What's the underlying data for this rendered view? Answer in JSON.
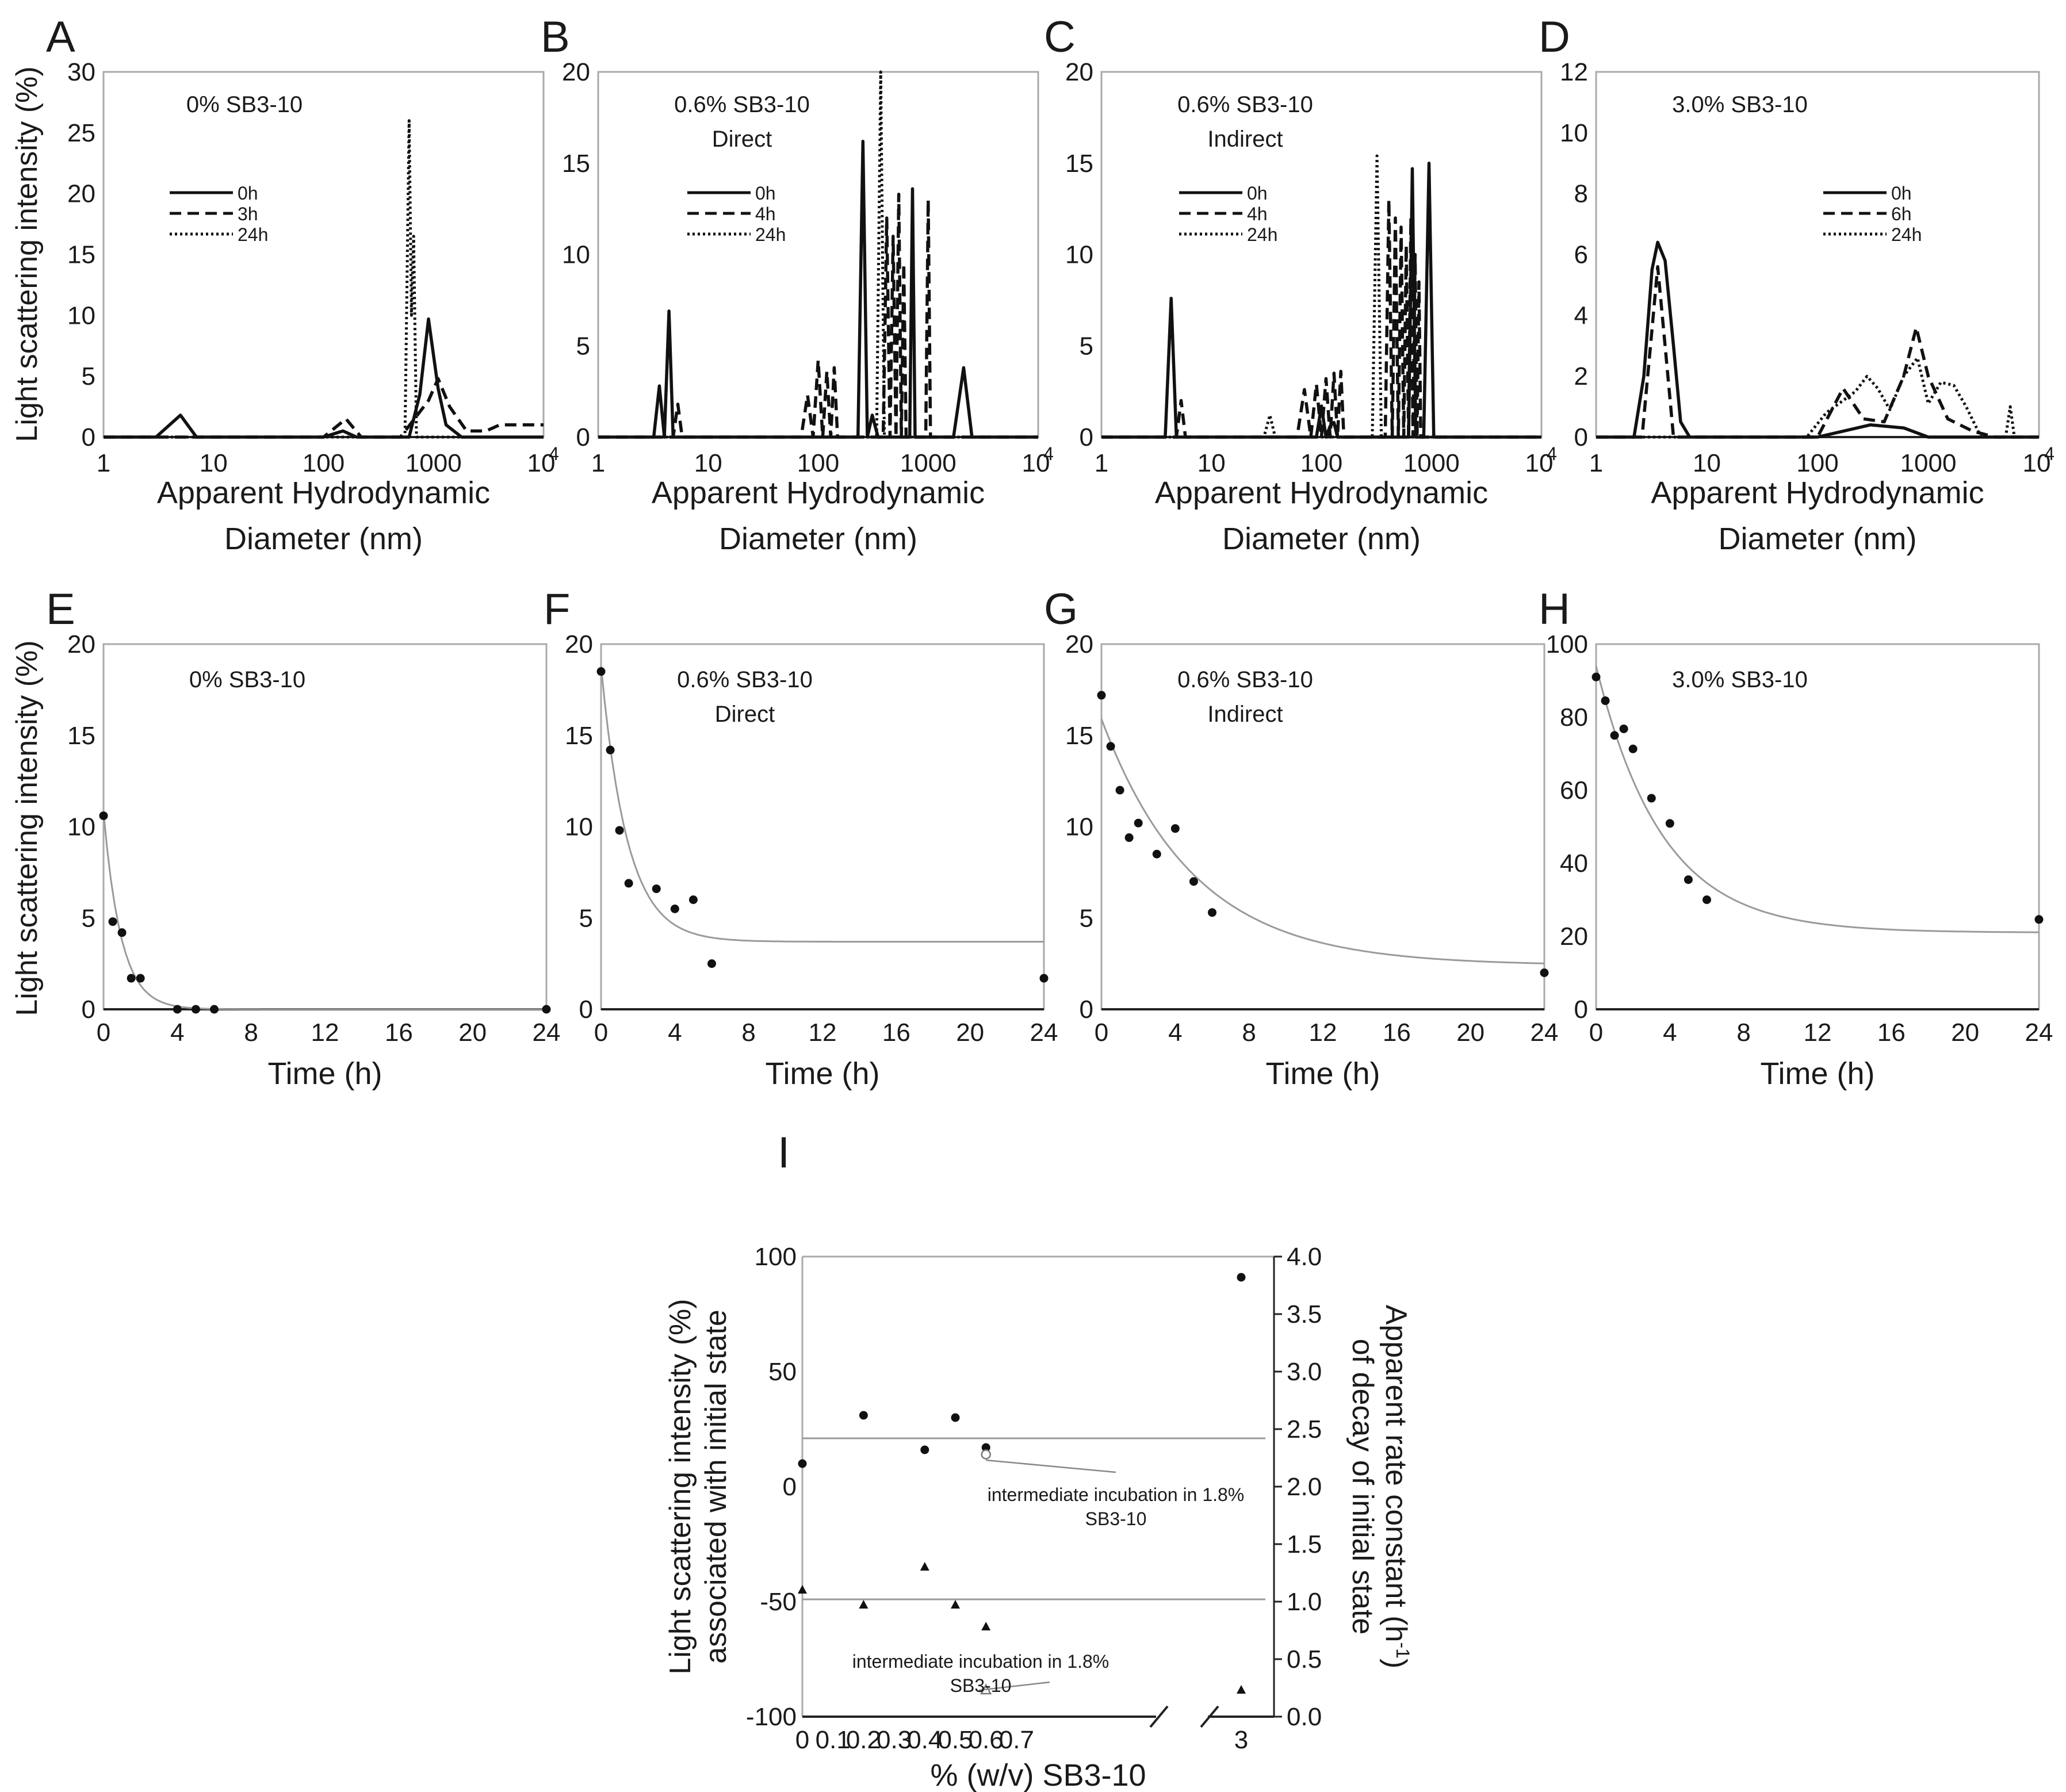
{
  "figure": {
    "shared_labels": {
      "dist_xlabel_line1": "Apparent Hydrodynamic",
      "dist_xlabel_line2": "Diameter (nm)",
      "dist_ylabel": "Light scattering intensity (%)",
      "time_xlabel": "Time (h)",
      "time_ylabel": "Light scattering intensity (%)"
    }
  },
  "chart_data": [
    {
      "id": "A",
      "panel_label": "A",
      "type": "line",
      "xscale": "log",
      "xlim": [
        1,
        10000
      ],
      "ylim": [
        0,
        30
      ],
      "xtick_labels": [
        "1",
        "10",
        "100",
        "1000",
        "10",
        "4"
      ],
      "ytick_labels": [
        "0",
        "5",
        "10",
        "15",
        "20",
        "25",
        "30"
      ],
      "annotation": [
        "0% SB3-10"
      ],
      "series": [
        {
          "name": "0h",
          "style": "solid",
          "x": [
            1,
            3,
            5,
            7,
            100,
            150,
            200,
            600,
            750,
            900,
            1100,
            1300,
            1800,
            10000
          ],
          "y": [
            0,
            0,
            1.8,
            0,
            0,
            0.5,
            0,
            0,
            3.5,
            9.7,
            4,
            1,
            0,
            0
          ]
        },
        {
          "name": "3h",
          "style": "dashed",
          "x": [
            1,
            100,
            160,
            220,
            500,
            900,
            1100,
            1400,
            2000,
            3000,
            4000,
            5000,
            10000
          ],
          "y": [
            0,
            0,
            1.5,
            0,
            0,
            3,
            4.8,
            2.5,
            0.5,
            0.5,
            1,
            1,
            1
          ]
        },
        {
          "name": "24h",
          "style": "dotted",
          "x": [
            1,
            550,
            600,
            630,
            660,
            700,
            750,
            10000
          ],
          "y": [
            0,
            0,
            26,
            10,
            16.5,
            0,
            0,
            0
          ]
        }
      ]
    },
    {
      "id": "B",
      "panel_label": "B",
      "type": "line",
      "xscale": "log",
      "xlim": [
        1,
        10000
      ],
      "ylim": [
        0,
        20
      ],
      "xtick_labels": [
        "1",
        "10",
        "100",
        "1000",
        "10",
        "4"
      ],
      "ytick_labels": [
        "0",
        "5",
        "10",
        "15",
        "20"
      ],
      "annotation": [
        "0.6% SB3-10",
        "Direct"
      ],
      "series": [
        {
          "name": "0h",
          "style": "solid",
          "x": [
            1,
            3.2,
            3.6,
            4.0,
            4.4,
            4.8,
            230,
            255,
            280,
            310,
            350,
            680,
            720,
            760,
            1700,
            2100,
            2500,
            10000
          ],
          "y": [
            0,
            0,
            2.8,
            0,
            6.9,
            0,
            0,
            16.2,
            0,
            1.2,
            0,
            0,
            13.6,
            0,
            0,
            3.8,
            0,
            0
          ]
        },
        {
          "name": "4h",
          "style": "dashed",
          "x": [
            1,
            4.8,
            5.3,
            5.8,
            70,
            80,
            90,
            100,
            110,
            120,
            130,
            140,
            150,
            390,
            420,
            450,
            480,
            510,
            540,
            570,
            600,
            630,
            950,
            1000,
            1050,
            10000
          ],
          "y": [
            0,
            0,
            1.8,
            0,
            0,
            2.3,
            0,
            4.2,
            0,
            3.6,
            0,
            3.8,
            0,
            0,
            12,
            0,
            11,
            0,
            13.3,
            0,
            9.5,
            0,
            0,
            13,
            0,
            0
          ]
        },
        {
          "name": "24h",
          "style": "dotted",
          "x": [
            1,
            340,
            370,
            400,
            10000
          ],
          "y": [
            0,
            0,
            20,
            0,
            0
          ]
        }
      ]
    },
    {
      "id": "C",
      "panel_label": "C",
      "type": "line",
      "xscale": "log",
      "xlim": [
        1,
        10000
      ],
      "ylim": [
        0,
        20
      ],
      "xtick_labels": [
        "1",
        "10",
        "100",
        "1000",
        "10",
        "4"
      ],
      "ytick_labels": [
        "0",
        "5",
        "10",
        "15",
        "20"
      ],
      "annotation": [
        "0.6% SB3-10",
        "Indirect"
      ],
      "series": [
        {
          "name": "0h",
          "style": "solid",
          "x": [
            1,
            3.8,
            4.3,
            4.8,
            90,
            100,
            110,
            120,
            130,
            140,
            620,
            670,
            720,
            850,
            950,
            1050,
            10000
          ],
          "y": [
            0,
            0,
            7.6,
            0,
            0,
            1.7,
            0,
            0.6,
            0.8,
            0,
            0,
            14.7,
            0,
            0,
            15,
            0,
            0
          ]
        },
        {
          "name": "4h",
          "style": "dashed",
          "x": [
            1,
            4.8,
            5.3,
            5.8,
            60,
            70,
            80,
            90,
            100,
            110,
            120,
            130,
            140,
            150,
            160,
            380,
            410,
            440,
            470,
            500,
            530,
            560,
            590,
            620,
            650,
            680,
            710,
            740,
            770,
            800,
            830,
            10000
          ],
          "y": [
            0,
            0,
            2,
            0,
            0,
            2.6,
            0,
            2.9,
            0,
            3.2,
            0,
            3.5,
            0,
            3.6,
            0,
            0,
            13,
            0,
            12,
            0,
            11.5,
            0,
            10.5,
            0,
            12,
            0,
            10,
            0,
            8.5,
            0,
            0,
            0
          ]
        },
        {
          "name": "24h",
          "style": "dotted",
          "x": [
            1,
            30,
            34,
            38,
            290,
            320,
            350,
            10000
          ],
          "y": [
            0,
            0,
            1.2,
            0,
            0,
            15.4,
            0,
            0
          ]
        }
      ]
    },
    {
      "id": "D",
      "panel_label": "D",
      "type": "line",
      "xscale": "log",
      "xlim": [
        1,
        10000
      ],
      "ylim": [
        0,
        12
      ],
      "xtick_labels": [
        "1",
        "10",
        "100",
        "1000",
        "10",
        "4"
      ],
      "ytick_labels": [
        "0",
        "2",
        "4",
        "6",
        "8",
        "10",
        "12"
      ],
      "annotation": [
        "3.0% SB3-10"
      ],
      "series": [
        {
          "name": "0h",
          "style": "solid",
          "x": [
            1,
            2.2,
            2.7,
            3.2,
            3.6,
            4.2,
            5.0,
            5.8,
            7,
            100,
            300,
            600,
            1000,
            10000
          ],
          "y": [
            0,
            0,
            2,
            5.5,
            6.4,
            5.8,
            3,
            0.5,
            0,
            0,
            0.4,
            0.3,
            0,
            0
          ]
        },
        {
          "name": "6h",
          "style": "dashed",
          "x": [
            1,
            2.6,
            3.1,
            3.6,
            4.2,
            5.0,
            100,
            170,
            260,
            400,
            600,
            780,
            1000,
            1500,
            2500,
            4000,
            10000
          ],
          "y": [
            0,
            0,
            3,
            5.6,
            3,
            0,
            0,
            1.6,
            0.6,
            0.5,
            2,
            3.6,
            2,
            0.6,
            0.2,
            0,
            0
          ]
        },
        {
          "name": "24h",
          "style": "dotted",
          "x": [
            1,
            80,
            120,
            170,
            220,
            280,
            350,
            450,
            600,
            800,
            1000,
            1300,
            1700,
            2200,
            3000,
            5000,
            5500,
            6000,
            6500,
            10000
          ],
          "y": [
            0,
            0,
            0.8,
            1.2,
            1.5,
            2,
            1.6,
            0.9,
            2,
            2.6,
            1.1,
            1.8,
            1.7,
            1,
            0,
            0,
            1,
            0,
            0,
            0
          ]
        }
      ]
    },
    {
      "id": "E",
      "panel_label": "E",
      "type": "scatter",
      "xlim": [
        0,
        24
      ],
      "ylim": [
        0,
        20
      ],
      "xtick_labels": [
        "0",
        "4",
        "8",
        "12",
        "16",
        "20",
        "24"
      ],
      "ytick_labels": [
        "0",
        "5",
        "10",
        "15",
        "20"
      ],
      "annotation": [
        "0% SB3-10"
      ],
      "points": {
        "x": [
          0,
          0.5,
          1,
          1.5,
          2,
          4,
          5,
          6,
          24
        ],
        "y": [
          10.6,
          4.8,
          4.2,
          1.7,
          1.7,
          0,
          0,
          0,
          0
        ]
      },
      "fit": {
        "model": "exponential decay",
        "y0": 10.8,
        "plateau": 0,
        "k": 1.05
      }
    },
    {
      "id": "F",
      "panel_label": "F",
      "type": "scatter",
      "xlim": [
        0,
        24
      ],
      "ylim": [
        0,
        20
      ],
      "xtick_labels": [
        "0",
        "4",
        "8",
        "12",
        "16",
        "20",
        "24"
      ],
      "ytick_labels": [
        "0",
        "5",
        "10",
        "15",
        "20"
      ],
      "annotation": [
        "0.6% SB3-10",
        "Direct"
      ],
      "points": {
        "x": [
          0,
          0.5,
          1,
          1.5,
          3,
          4,
          5,
          6,
          24
        ],
        "y": [
          18.5,
          14.2,
          9.8,
          6.9,
          6.6,
          5.5,
          6,
          2.5,
          1.7
        ]
      },
      "fit": {
        "model": "exponential decay",
        "y0": 18.8,
        "plateau": 3.7,
        "k": 0.7
      }
    },
    {
      "id": "G",
      "panel_label": "G",
      "type": "scatter",
      "xlim": [
        0,
        24
      ],
      "ylim": [
        0,
        20
      ],
      "xtick_labels": [
        "0",
        "4",
        "8",
        "12",
        "16",
        "20",
        "24"
      ],
      "ytick_labels": [
        "0",
        "5",
        "10",
        "15",
        "20"
      ],
      "annotation": [
        "0.6% SB3-10",
        "Indirect"
      ],
      "points": {
        "x": [
          0,
          0.5,
          1,
          1.5,
          2,
          3,
          4,
          5,
          6,
          24
        ],
        "y": [
          17.2,
          14.4,
          12,
          9.4,
          10.2,
          8.5,
          9.9,
          7,
          5.3,
          2
        ]
      },
      "fit": {
        "model": "exponential decay",
        "y0": 15.9,
        "plateau": 2.4,
        "k": 0.2
      }
    },
    {
      "id": "H",
      "panel_label": "H",
      "type": "scatter",
      "xlim": [
        0,
        24
      ],
      "ylim": [
        0,
        100
      ],
      "xtick_labels": [
        "0",
        "4",
        "8",
        "12",
        "16",
        "20",
        "24"
      ],
      "ytick_labels": [
        "0",
        "20",
        "40",
        "60",
        "80",
        "100"
      ],
      "annotation": [
        "3.0% SB3-10"
      ],
      "points": {
        "x": [
          0,
          0.5,
          1,
          1.5,
          2,
          3,
          4,
          5,
          6,
          24
        ],
        "y": [
          91,
          84.5,
          75,
          76.8,
          71.3,
          57.8,
          50.9,
          35.5,
          30,
          24.6
        ]
      },
      "fit": {
        "model": "exponential decay",
        "y0": 94,
        "plateau": 21,
        "k": 0.28
      }
    },
    {
      "id": "I",
      "panel_label": "I",
      "type": "scatter",
      "xlabel": "% (w/v) SB3-10",
      "ylabel_left_line1": "Light scattering intensity (%)",
      "ylabel_left_line2": "associated with initial state",
      "ylabel_right_line1": "Apparent rate constant (h",
      "ylabel_right_sup": "-1",
      "ylabel_right_close": ")",
      "ylabel_right_line2": "of decay of initial state",
      "xtick_labels": [
        "0",
        "0.1",
        "0.2",
        "0.3",
        "0.4",
        "0.5",
        "0.6",
        "0.7",
        "3"
      ],
      "ytick_labels_left": [
        "100",
        "50",
        "0",
        "-50",
        "-100"
      ],
      "ytick_labels_right": [
        "4.0",
        "3.5",
        "3.0",
        "2.5",
        "2.0",
        "1.5",
        "1.0",
        "0.5",
        "0.0"
      ],
      "ylim_left": [
        -100,
        100
      ],
      "ylim_right": [
        0,
        4.0
      ],
      "intensity_points": {
        "x": [
          0,
          0.2,
          0.4,
          0.5,
          0.6,
          3
        ],
        "y": [
          10,
          31,
          16,
          30,
          17,
          91
        ]
      },
      "intensity_mean_line": 21,
      "intensity_open_point": {
        "x": 0.6,
        "y": 14
      },
      "rate_points": {
        "x": [
          0,
          0.2,
          0.4,
          0.5,
          0.6,
          3
        ],
        "y": [
          1.1,
          0.97,
          1.3,
          0.97,
          0.78,
          0.23
        ]
      },
      "rate_mean_line": 1.02,
      "rate_open_point": {
        "x": 0.6,
        "y": 0.23
      },
      "annotation_upper": [
        "intermediate incubation in 1.8%",
        "SB3-10"
      ],
      "annotation_lower": [
        "intermediate incubation in 1.8%",
        "SB3-10"
      ]
    }
  ]
}
